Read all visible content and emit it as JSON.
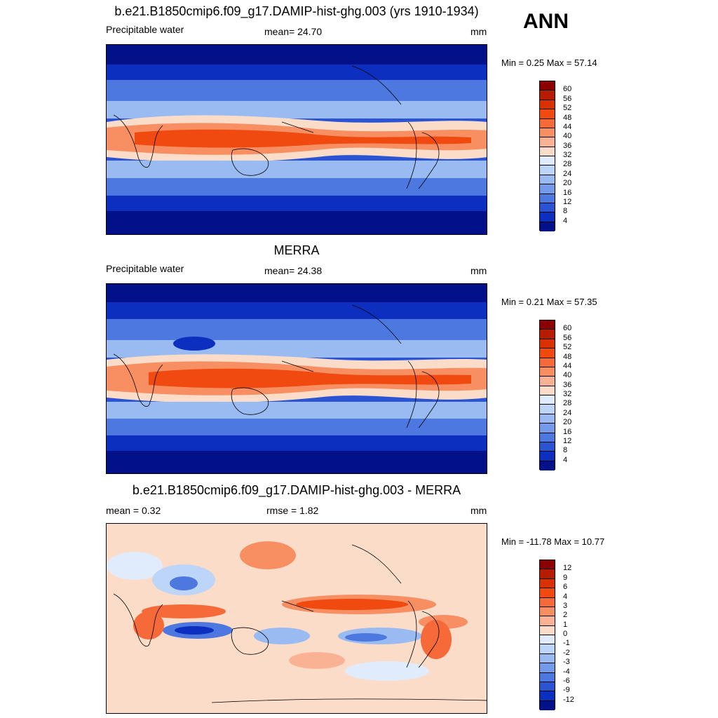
{
  "season": "ANN",
  "panels": [
    {
      "title": "b.e21.B1850cmip6.f09_g17.DAMIP-hist-ghg.003 (yrs 1910-1934)",
      "left_label": "Precipitable water",
      "center_label": "mean=  24.70",
      "units": "mm",
      "minmax": "Min =   0.25 Max =  57.14",
      "colorbar": {
        "labels": [
          "60",
          "56",
          "52",
          "48",
          "44",
          "40",
          "36",
          "32",
          "28",
          "24",
          "20",
          "16",
          "12",
          "8",
          "4"
        ],
        "colors": [
          "#8b0000",
          "#b71c00",
          "#d93200",
          "#f04a10",
          "#f56a38",
          "#f88f62",
          "#f9b394",
          "#fbdcc8",
          "#e0ecfb",
          "#bcd5f8",
          "#99bbf2",
          "#739be9",
          "#4c78e0",
          "#2a54d4",
          "#0d2fbf",
          "#02118a"
        ]
      }
    },
    {
      "title": "MERRA",
      "left_label": "Precipitable water",
      "center_label": "mean=  24.38",
      "units": "mm",
      "minmax": "Min =   0.21 Max =  57.35",
      "colorbar": {
        "labels": [
          "60",
          "56",
          "52",
          "48",
          "44",
          "40",
          "36",
          "32",
          "28",
          "24",
          "20",
          "16",
          "12",
          "8",
          "4"
        ],
        "colors": [
          "#8b0000",
          "#b71c00",
          "#d93200",
          "#f04a10",
          "#f56a38",
          "#f88f62",
          "#f9b394",
          "#fbdcc8",
          "#e0ecfb",
          "#bcd5f8",
          "#99bbf2",
          "#739be9",
          "#4c78e0",
          "#2a54d4",
          "#0d2fbf",
          "#02118a"
        ]
      }
    },
    {
      "title": "b.e21.B1850cmip6.f09_g17.DAMIP-hist-ghg.003 - MERRA",
      "left_label": "mean =   0.32",
      "center_label": "rmse =   1.82",
      "units": "mm",
      "minmax": "Min = -11.78 Max =  10.77",
      "colorbar": {
        "labels": [
          "12",
          "9",
          "6",
          "4",
          "3",
          "2",
          "1",
          "0",
          "-1",
          "-2",
          "-3",
          "-4",
          "-6",
          "-9",
          "-12"
        ],
        "colors": [
          "#8b0000",
          "#b71c00",
          "#d93200",
          "#f04a10",
          "#f56a38",
          "#f88f62",
          "#f9b394",
          "#fbdcc8",
          "#e0ecfb",
          "#bcd5f8",
          "#99bbf2",
          "#739be9",
          "#4c78e0",
          "#2a54d4",
          "#0d2fbf",
          "#02118a"
        ]
      }
    }
  ]
}
